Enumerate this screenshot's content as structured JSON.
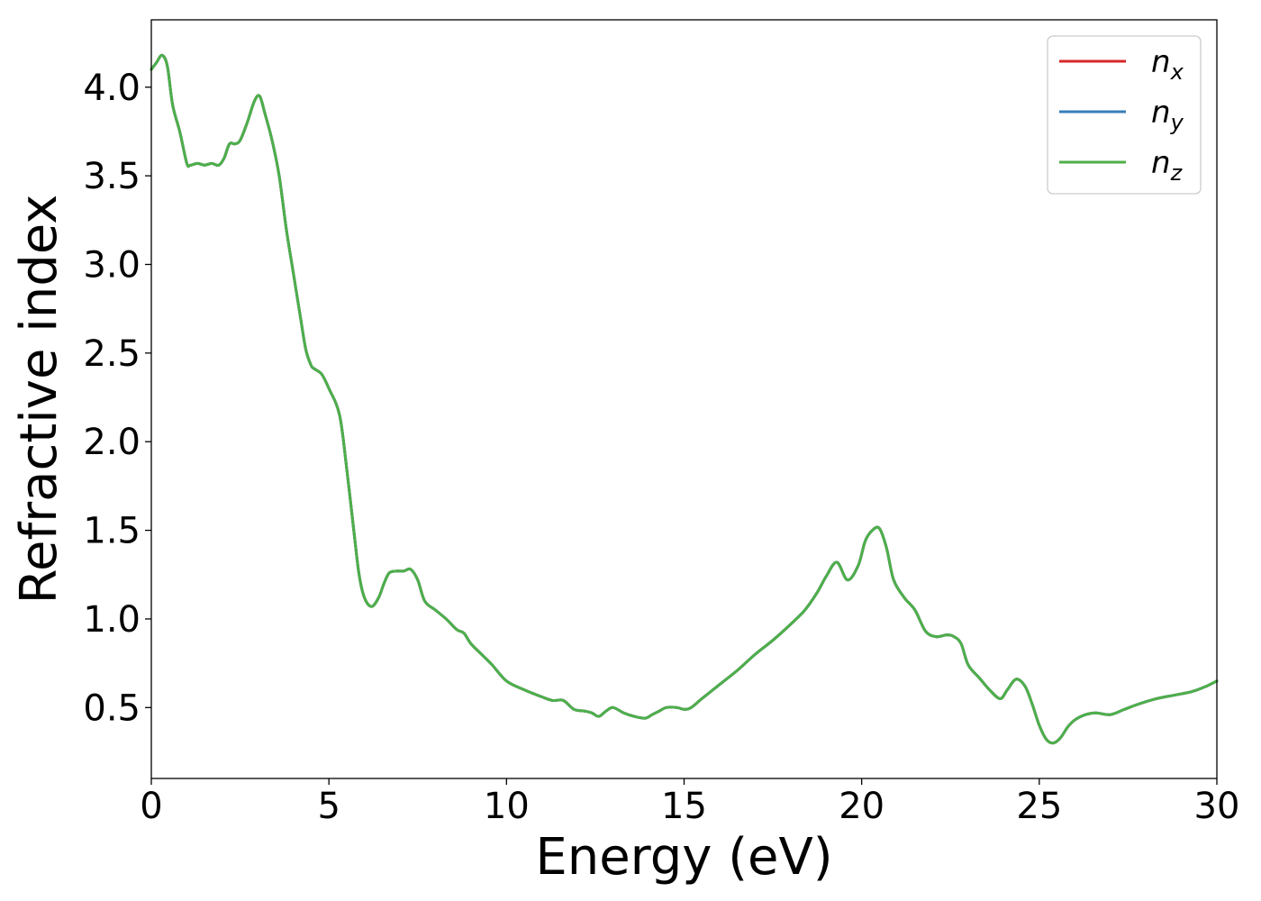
{
  "chart_data": {
    "type": "line",
    "title": "",
    "xlabel": "Energy (eV)",
    "ylabel": "Refractive index",
    "xlim": [
      0,
      30
    ],
    "ylim": [
      0.1,
      4.38
    ],
    "xticks": [
      0,
      5,
      10,
      15,
      20,
      25,
      30
    ],
    "yticks": [
      0.5,
      1.0,
      1.5,
      2.0,
      2.5,
      3.0,
      3.5,
      4.0
    ],
    "xtick_labels": [
      "0",
      "5",
      "10",
      "15",
      "20",
      "25",
      "30"
    ],
    "ytick_labels": [
      "0.5",
      "1.0",
      "1.5",
      "2.0",
      "2.5",
      "3.0",
      "3.5",
      "4.0"
    ],
    "grid": false,
    "legend_position": "top-right",
    "series": [
      {
        "name": "n_x",
        "name_base": "n",
        "name_sub": "x",
        "color": "#d62728",
        "x": [
          0,
          0.15,
          0.3,
          0.45,
          0.6,
          0.8,
          1.0,
          1.1,
          1.3,
          1.5,
          1.7,
          1.9,
          2.05,
          2.2,
          2.35,
          2.5,
          2.7,
          2.9,
          3.05,
          3.2,
          3.4,
          3.6,
          3.8,
          4.0,
          4.2,
          4.35,
          4.5,
          4.6,
          4.8,
          5.0,
          5.3,
          5.5,
          5.7,
          5.85,
          6.0,
          6.2,
          6.4,
          6.55,
          6.7,
          6.9,
          7.1,
          7.3,
          7.5,
          7.7,
          8.0,
          8.3,
          8.6,
          8.8,
          9.0,
          9.3,
          9.6,
          10.0,
          10.5,
          11.0,
          11.3,
          11.6,
          11.9,
          12.2,
          12.4,
          12.6,
          12.8,
          13.0,
          13.3,
          13.6,
          13.9,
          14.1,
          14.3,
          14.5,
          14.8,
          15.0,
          15.2,
          15.5,
          16.0,
          16.5,
          17.0,
          17.5,
          18.0,
          18.4,
          18.75,
          19.0,
          19.3,
          19.6,
          19.9,
          20.1,
          20.3,
          20.5,
          20.7,
          20.9,
          21.2,
          21.5,
          21.8,
          22.1,
          22.4,
          22.6,
          22.8,
          23.0,
          23.3,
          23.6,
          23.9,
          24.1,
          24.35,
          24.6,
          24.8,
          25.0,
          25.2,
          25.4,
          25.6,
          25.8,
          26.0,
          26.3,
          26.6,
          27.0,
          27.4,
          27.8,
          28.3,
          28.8,
          29.3,
          29.7,
          30.0
        ],
        "y": [
          4.1,
          4.14,
          4.18,
          4.12,
          3.9,
          3.75,
          3.57,
          3.56,
          3.57,
          3.56,
          3.57,
          3.56,
          3.6,
          3.68,
          3.68,
          3.7,
          3.8,
          3.92,
          3.95,
          3.85,
          3.7,
          3.5,
          3.2,
          2.95,
          2.7,
          2.52,
          2.43,
          2.41,
          2.38,
          2.3,
          2.15,
          1.85,
          1.5,
          1.25,
          1.12,
          1.07,
          1.12,
          1.2,
          1.26,
          1.27,
          1.27,
          1.28,
          1.22,
          1.1,
          1.05,
          1.0,
          0.94,
          0.92,
          0.86,
          0.8,
          0.74,
          0.65,
          0.6,
          0.56,
          0.54,
          0.54,
          0.49,
          0.48,
          0.47,
          0.45,
          0.48,
          0.5,
          0.47,
          0.45,
          0.44,
          0.46,
          0.48,
          0.5,
          0.5,
          0.49,
          0.5,
          0.55,
          0.63,
          0.71,
          0.8,
          0.88,
          0.97,
          1.05,
          1.15,
          1.24,
          1.32,
          1.22,
          1.3,
          1.44,
          1.5,
          1.51,
          1.4,
          1.22,
          1.12,
          1.05,
          0.93,
          0.9,
          0.91,
          0.9,
          0.86,
          0.74,
          0.67,
          0.6,
          0.55,
          0.6,
          0.66,
          0.62,
          0.52,
          0.4,
          0.32,
          0.3,
          0.33,
          0.39,
          0.43,
          0.46,
          0.47,
          0.46,
          0.49,
          0.52,
          0.55,
          0.57,
          0.59,
          0.62,
          0.65
        ]
      },
      {
        "name": "n_y",
        "name_base": "n",
        "name_sub": "y",
        "color": "#377eb8",
        "x": [
          0,
          0.15,
          0.3,
          0.45,
          0.6,
          0.8,
          1.0,
          1.1,
          1.3,
          1.5,
          1.7,
          1.9,
          2.05,
          2.2,
          2.35,
          2.5,
          2.7,
          2.9,
          3.05,
          3.2,
          3.4,
          3.6,
          3.8,
          4.0,
          4.2,
          4.35,
          4.5,
          4.6,
          4.8,
          5.0,
          5.3,
          5.5,
          5.7,
          5.85,
          6.0,
          6.2,
          6.4,
          6.55,
          6.7,
          6.9,
          7.1,
          7.3,
          7.5,
          7.7,
          8.0,
          8.3,
          8.6,
          8.8,
          9.0,
          9.3,
          9.6,
          10.0,
          10.5,
          11.0,
          11.3,
          11.6,
          11.9,
          12.2,
          12.4,
          12.6,
          12.8,
          13.0,
          13.3,
          13.6,
          13.9,
          14.1,
          14.3,
          14.5,
          14.8,
          15.0,
          15.2,
          15.5,
          16.0,
          16.5,
          17.0,
          17.5,
          18.0,
          18.4,
          18.75,
          19.0,
          19.3,
          19.6,
          19.9,
          20.1,
          20.3,
          20.5,
          20.7,
          20.9,
          21.2,
          21.5,
          21.8,
          22.1,
          22.4,
          22.6,
          22.8,
          23.0,
          23.3,
          23.6,
          23.9,
          24.1,
          24.35,
          24.6,
          24.8,
          25.0,
          25.2,
          25.4,
          25.6,
          25.8,
          26.0,
          26.3,
          26.6,
          27.0,
          27.4,
          27.8,
          28.3,
          28.8,
          29.3,
          29.7,
          30.0
        ],
        "y": [
          4.1,
          4.14,
          4.18,
          4.12,
          3.9,
          3.75,
          3.57,
          3.56,
          3.57,
          3.56,
          3.57,
          3.56,
          3.6,
          3.68,
          3.68,
          3.7,
          3.8,
          3.92,
          3.95,
          3.85,
          3.7,
          3.5,
          3.2,
          2.95,
          2.7,
          2.52,
          2.43,
          2.41,
          2.38,
          2.3,
          2.15,
          1.85,
          1.5,
          1.25,
          1.12,
          1.07,
          1.12,
          1.2,
          1.26,
          1.27,
          1.27,
          1.28,
          1.22,
          1.1,
          1.05,
          1.0,
          0.94,
          0.92,
          0.86,
          0.8,
          0.74,
          0.65,
          0.6,
          0.56,
          0.54,
          0.54,
          0.49,
          0.48,
          0.47,
          0.45,
          0.48,
          0.5,
          0.47,
          0.45,
          0.44,
          0.46,
          0.48,
          0.5,
          0.5,
          0.49,
          0.5,
          0.55,
          0.63,
          0.71,
          0.8,
          0.88,
          0.97,
          1.05,
          1.15,
          1.24,
          1.32,
          1.22,
          1.3,
          1.44,
          1.5,
          1.51,
          1.4,
          1.22,
          1.12,
          1.05,
          0.93,
          0.9,
          0.91,
          0.9,
          0.86,
          0.74,
          0.67,
          0.6,
          0.55,
          0.6,
          0.66,
          0.62,
          0.52,
          0.4,
          0.32,
          0.3,
          0.33,
          0.39,
          0.43,
          0.46,
          0.47,
          0.46,
          0.49,
          0.52,
          0.55,
          0.57,
          0.59,
          0.62,
          0.65
        ]
      },
      {
        "name": "n_z",
        "name_base": "n",
        "name_sub": "z",
        "color": "#4daf4a",
        "x": [
          0,
          0.15,
          0.3,
          0.45,
          0.6,
          0.8,
          1.0,
          1.1,
          1.3,
          1.5,
          1.7,
          1.9,
          2.05,
          2.2,
          2.35,
          2.5,
          2.7,
          2.9,
          3.05,
          3.2,
          3.4,
          3.6,
          3.8,
          4.0,
          4.2,
          4.35,
          4.5,
          4.6,
          4.8,
          5.0,
          5.3,
          5.5,
          5.7,
          5.85,
          6.0,
          6.2,
          6.4,
          6.55,
          6.7,
          6.9,
          7.1,
          7.3,
          7.5,
          7.7,
          8.0,
          8.3,
          8.6,
          8.8,
          9.0,
          9.3,
          9.6,
          10.0,
          10.5,
          11.0,
          11.3,
          11.6,
          11.9,
          12.2,
          12.4,
          12.6,
          12.8,
          13.0,
          13.3,
          13.6,
          13.9,
          14.1,
          14.3,
          14.5,
          14.8,
          15.0,
          15.2,
          15.5,
          16.0,
          16.5,
          17.0,
          17.5,
          18.0,
          18.4,
          18.75,
          19.0,
          19.3,
          19.6,
          19.9,
          20.1,
          20.3,
          20.5,
          20.7,
          20.9,
          21.2,
          21.5,
          21.8,
          22.1,
          22.4,
          22.6,
          22.8,
          23.0,
          23.3,
          23.6,
          23.9,
          24.1,
          24.35,
          24.6,
          24.8,
          25.0,
          25.2,
          25.4,
          25.6,
          25.8,
          26.0,
          26.3,
          26.6,
          27.0,
          27.4,
          27.8,
          28.3,
          28.8,
          29.3,
          29.7,
          30.0
        ],
        "y": [
          4.1,
          4.14,
          4.18,
          4.12,
          3.9,
          3.75,
          3.57,
          3.56,
          3.57,
          3.56,
          3.57,
          3.56,
          3.6,
          3.68,
          3.68,
          3.7,
          3.8,
          3.92,
          3.95,
          3.85,
          3.7,
          3.5,
          3.2,
          2.95,
          2.7,
          2.52,
          2.43,
          2.41,
          2.38,
          2.3,
          2.15,
          1.85,
          1.5,
          1.25,
          1.12,
          1.07,
          1.12,
          1.2,
          1.26,
          1.27,
          1.27,
          1.28,
          1.22,
          1.1,
          1.05,
          1.0,
          0.94,
          0.92,
          0.86,
          0.8,
          0.74,
          0.65,
          0.6,
          0.56,
          0.54,
          0.54,
          0.49,
          0.48,
          0.47,
          0.45,
          0.48,
          0.5,
          0.47,
          0.45,
          0.44,
          0.46,
          0.48,
          0.5,
          0.5,
          0.49,
          0.5,
          0.55,
          0.63,
          0.71,
          0.8,
          0.88,
          0.97,
          1.05,
          1.15,
          1.24,
          1.32,
          1.22,
          1.3,
          1.44,
          1.5,
          1.51,
          1.4,
          1.22,
          1.12,
          1.05,
          0.93,
          0.9,
          0.91,
          0.9,
          0.86,
          0.74,
          0.67,
          0.6,
          0.55,
          0.6,
          0.66,
          0.62,
          0.52,
          0.4,
          0.32,
          0.3,
          0.33,
          0.39,
          0.43,
          0.46,
          0.47,
          0.46,
          0.49,
          0.52,
          0.55,
          0.57,
          0.59,
          0.62,
          0.65
        ]
      }
    ]
  }
}
